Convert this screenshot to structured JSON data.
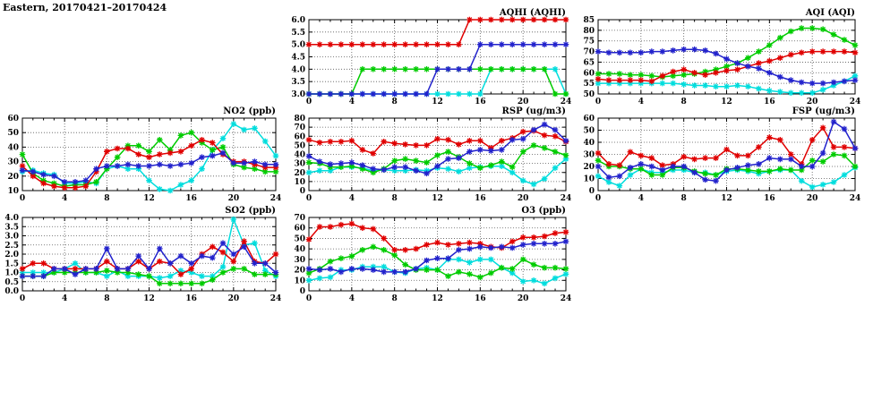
{
  "page_title": "Eastern, 20170421–20170424",
  "colors": {
    "red": "#e00000",
    "green": "#00cc00",
    "blue": "#2222cc",
    "cyan": "#00dddd"
  },
  "chart_data": [
    {
      "id": "aqhi",
      "title": "AQHI (AQHI)",
      "type": "line",
      "x_range": [
        0,
        24
      ],
      "x_step": 1,
      "x_tick_step": 4,
      "x_minor_step": 1,
      "y_range": [
        3.0,
        6.0
      ],
      "y_tick_step": 0.5,
      "y_decimals": 1,
      "grid": true,
      "series": [
        {
          "name": "cyan",
          "color": "#00dddd",
          "values": [
            3,
            3,
            3,
            3,
            3,
            3,
            3,
            3,
            3,
            3,
            3,
            3,
            3,
            3,
            3,
            3,
            3,
            4,
            4,
            4,
            4,
            4,
            4,
            4,
            3
          ]
        },
        {
          "name": "green",
          "color": "#00cc00",
          "values": [
            3,
            3,
            3,
            3,
            3,
            4,
            4,
            4,
            4,
            4,
            4,
            4,
            4,
            4,
            4,
            4,
            4,
            4,
            4,
            4,
            4,
            4,
            4,
            3,
            3
          ]
        },
        {
          "name": "red",
          "color": "#e00000",
          "values": [
            5,
            5,
            5,
            5,
            5,
            5,
            5,
            5,
            5,
            5,
            5,
            5,
            5,
            5,
            5,
            6,
            6,
            6,
            6,
            6,
            6,
            6,
            6,
            6,
            6
          ]
        },
        {
          "name": "blue",
          "color": "#2222cc",
          "values": [
            3,
            3,
            3,
            3,
            3,
            3,
            3,
            3,
            3,
            3,
            3,
            3,
            4,
            4,
            4,
            4,
            5,
            5,
            5,
            5,
            5,
            5,
            5,
            5,
            5
          ]
        }
      ]
    },
    {
      "id": "aqi",
      "title": "AQI (AQI)",
      "type": "line",
      "x_range": [
        0,
        24
      ],
      "x_step": 1,
      "x_tick_step": 4,
      "x_minor_step": 1,
      "y_range": [
        50,
        85
      ],
      "y_tick_step": 5,
      "y_decimals": 0,
      "grid": true,
      "series": [
        {
          "name": "cyan",
          "color": "#00dddd",
          "values": [
            55,
            55,
            55,
            55,
            55,
            55,
            55,
            55,
            54.5,
            54,
            54,
            53.5,
            53.5,
            54,
            53.5,
            52.5,
            51.5,
            51,
            50.5,
            50.5,
            50.5,
            52,
            54,
            56,
            58.5
          ]
        },
        {
          "name": "green",
          "color": "#00cc00",
          "values": [
            59.5,
            59.5,
            59.5,
            59,
            59,
            58.5,
            58,
            58.5,
            59,
            59.5,
            60.5,
            61.5,
            63,
            64.5,
            67,
            70,
            73,
            76.5,
            79.5,
            81,
            81,
            80.5,
            78,
            75.5,
            73
          ]
        },
        {
          "name": "red",
          "color": "#e00000",
          "values": [
            57,
            56.5,
            56.5,
            56.5,
            56.5,
            56,
            58.5,
            60.5,
            61.5,
            60,
            59,
            60,
            61,
            61.5,
            63,
            64.5,
            65.5,
            67,
            68.5,
            69.5,
            70,
            70,
            70,
            70,
            69.5
          ]
        },
        {
          "name": "blue",
          "color": "#2222cc",
          "values": [
            70,
            69.5,
            69.5,
            69.5,
            69.5,
            70,
            70,
            70.5,
            71,
            71,
            70.5,
            69,
            66.5,
            64.5,
            63,
            62,
            60,
            58,
            56.5,
            55.5,
            55,
            55,
            55.5,
            56,
            56.5
          ]
        }
      ]
    },
    {
      "id": "no2",
      "title": "NO2 (ppb)",
      "type": "line",
      "x_range": [
        0,
        24
      ],
      "x_step": 1,
      "x_tick_step": 4,
      "x_minor_step": 1,
      "y_range": [
        10,
        60
      ],
      "y_tick_step": 10,
      "y_decimals": 0,
      "grid": true,
      "series": [
        {
          "name": "cyan",
          "color": "#00dddd",
          "values": [
            23,
            24,
            22,
            21,
            15,
            15,
            16,
            15,
            25,
            27,
            25,
            25,
            17,
            11,
            10,
            14,
            17,
            25,
            38,
            46,
            56,
            52,
            53,
            44,
            34
          ]
        },
        {
          "name": "green",
          "color": "#00cc00",
          "values": [
            35,
            22,
            17,
            15,
            13,
            14,
            14,
            16,
            25,
            33,
            41,
            41,
            37,
            45,
            38,
            48,
            50,
            43,
            38,
            40,
            28,
            26,
            25,
            23,
            23
          ]
        },
        {
          "name": "red",
          "color": "#e00000",
          "values": [
            27,
            20,
            15,
            13,
            12,
            12,
            13,
            23,
            37,
            39,
            39,
            35,
            33,
            35,
            36,
            37,
            41,
            45,
            43,
            35,
            30,
            30,
            28,
            26,
            26
          ]
        },
        {
          "name": "blue",
          "color": "#2222cc",
          "values": [
            24,
            23,
            21,
            20,
            16,
            16,
            17,
            25,
            27,
            27,
            28,
            27,
            27,
            28,
            27,
            28,
            29,
            33,
            34,
            36,
            29,
            29,
            30,
            28,
            28
          ]
        }
      ]
    },
    {
      "id": "rsp",
      "title": "RSP (ug/m3)",
      "type": "line",
      "x_range": [
        0,
        24
      ],
      "x_step": 1,
      "x_tick_step": 4,
      "x_minor_step": 1,
      "y_range": [
        0,
        80
      ],
      "y_tick_step": 10,
      "y_decimals": 0,
      "grid": true,
      "series": [
        {
          "name": "cyan",
          "color": "#00dddd",
          "values": [
            20,
            22,
            22,
            26,
            26,
            25,
            22,
            23,
            22,
            22,
            23,
            22,
            25,
            24,
            21,
            25,
            26,
            27,
            27,
            20,
            11,
            7,
            13,
            25,
            35
          ]
        },
        {
          "name": "green",
          "color": "#00cc00",
          "values": [
            31,
            30,
            26,
            26,
            27,
            24,
            20,
            24,
            33,
            35,
            33,
            31,
            39,
            43,
            37,
            30,
            25,
            28,
            32,
            26,
            43,
            50,
            47,
            43,
            39
          ]
        },
        {
          "name": "red",
          "color": "#e00000",
          "values": [
            56,
            53,
            54,
            54,
            55,
            45,
            41,
            54,
            52,
            51,
            50,
            50,
            57,
            56,
            51,
            55,
            55,
            47,
            55,
            58,
            65,
            66,
            61,
            60,
            54
          ]
        },
        {
          "name": "blue",
          "color": "#2222cc",
          "values": [
            38,
            32,
            29,
            30,
            31,
            28,
            24,
            23,
            26,
            26,
            22,
            19,
            27,
            35,
            36,
            43,
            45,
            44,
            45,
            56,
            57,
            67,
            73,
            67,
            55
          ]
        }
      ]
    },
    {
      "id": "fsp",
      "title": "FSP (ug/m3)",
      "type": "line",
      "x_range": [
        0,
        24
      ],
      "x_step": 1,
      "x_tick_step": 4,
      "x_minor_step": 1,
      "y_range": [
        0,
        60
      ],
      "y_tick_step": 10,
      "y_decimals": 0,
      "grid": true,
      "series": [
        {
          "name": "cyan",
          "color": "#00dddd",
          "values": [
            12,
            7,
            4,
            13,
            18,
            15,
            15,
            17,
            17,
            15,
            15,
            13,
            16,
            17,
            16,
            14,
            16,
            17,
            17,
            8,
            3,
            5,
            7,
            13,
            19
          ]
        },
        {
          "name": "green",
          "color": "#00cc00",
          "values": [
            25,
            20,
            20,
            18,
            18,
            13,
            13,
            19,
            19,
            16,
            14,
            13,
            18,
            18,
            17,
            16,
            16,
            18,
            17,
            17,
            25,
            24,
            30,
            29,
            20
          ]
        },
        {
          "name": "red",
          "color": "#e00000",
          "values": [
            31,
            22,
            21,
            32,
            29,
            27,
            21,
            22,
            28,
            26,
            27,
            27,
            34,
            29,
            29,
            36,
            44,
            42,
            30,
            22,
            42,
            52,
            36,
            36,
            35
          ]
        },
        {
          "name": "blue",
          "color": "#2222cc",
          "values": [
            20,
            11,
            12,
            19,
            22,
            20,
            17,
            20,
            20,
            15,
            9,
            8,
            17,
            19,
            21,
            22,
            27,
            26,
            26,
            20,
            20,
            31,
            57,
            51,
            35
          ]
        }
      ]
    },
    {
      "id": "so2",
      "title": "SO2 (ppb)",
      "type": "line",
      "x_range": [
        0,
        24
      ],
      "x_step": 1,
      "x_tick_step": 4,
      "x_minor_step": 1,
      "y_range": [
        0.0,
        4.0
      ],
      "y_tick_step": 0.5,
      "y_decimals": 1,
      "grid": true,
      "series": [
        {
          "name": "cyan",
          "color": "#00dddd",
          "values": [
            1.0,
            1.0,
            1.0,
            1.0,
            1.2,
            1.5,
            1.0,
            1.0,
            0.8,
            1.1,
            0.8,
            0.8,
            0.8,
            0.7,
            0.8,
            1.1,
            1.0,
            0.8,
            0.8,
            1.3,
            3.9,
            2.5,
            2.6,
            1.1,
            0.8
          ]
        },
        {
          "name": "green",
          "color": "#00cc00",
          "values": [
            0.8,
            0.8,
            0.8,
            1.0,
            1.0,
            1.0,
            1.0,
            1.0,
            1.1,
            1.0,
            1.0,
            0.9,
            0.8,
            0.4,
            0.4,
            0.4,
            0.4,
            0.4,
            0.6,
            1.0,
            1.2,
            1.2,
            0.9,
            0.9,
            0.9
          ]
        },
        {
          "name": "red",
          "color": "#e00000",
          "values": [
            1.2,
            1.5,
            1.5,
            1.2,
            1.2,
            1.2,
            1.2,
            1.2,
            1.6,
            1.2,
            1.2,
            1.6,
            1.2,
            1.6,
            1.5,
            0.9,
            1.2,
            2.0,
            2.4,
            2.1,
            1.6,
            2.7,
            1.6,
            1.5,
            2.0
          ]
        },
        {
          "name": "blue",
          "color": "#2222cc",
          "values": [
            0.8,
            0.8,
            0.8,
            1.2,
            1.2,
            0.9,
            1.2,
            1.2,
            2.3,
            1.2,
            1.2,
            1.9,
            1.2,
            2.3,
            1.5,
            1.9,
            1.5,
            1.9,
            1.8,
            2.6,
            2.0,
            2.4,
            1.5,
            1.5,
            1.0
          ]
        }
      ]
    },
    {
      "id": "o3",
      "title": "O3 (ppb)",
      "type": "line",
      "x_range": [
        0,
        24
      ],
      "x_step": 1,
      "x_tick_step": 4,
      "x_minor_step": 1,
      "y_range": [
        0,
        70
      ],
      "y_tick_step": 10,
      "y_decimals": 0,
      "grid": true,
      "series": [
        {
          "name": "cyan",
          "color": "#00dddd",
          "values": [
            10,
            12,
            13,
            20,
            20,
            23,
            23,
            23,
            18,
            17,
            21,
            22,
            20,
            30,
            30,
            27,
            30,
            30,
            22,
            17,
            9,
            10,
            7,
            12,
            16
          ]
        },
        {
          "name": "green",
          "color": "#00cc00",
          "values": [
            17,
            21,
            28,
            31,
            33,
            39,
            42,
            39,
            34,
            25,
            20,
            20,
            20,
            14,
            18,
            16,
            13,
            17,
            22,
            21,
            30,
            25,
            22,
            22,
            21
          ]
        },
        {
          "name": "red",
          "color": "#e00000",
          "values": [
            49,
            61,
            61,
            63,
            64,
            60,
            59,
            50,
            39,
            39,
            40,
            44,
            46,
            44,
            45,
            46,
            45,
            42,
            41,
            47,
            51,
            51,
            52,
            55,
            56
          ]
        },
        {
          "name": "blue",
          "color": "#2222cc",
          "values": [
            21,
            20,
            21,
            18,
            21,
            21,
            20,
            18,
            18,
            18,
            21,
            29,
            31,
            31,
            39,
            40,
            42,
            41,
            42,
            41,
            44,
            45,
            45,
            45,
            47
          ]
        }
      ]
    }
  ]
}
